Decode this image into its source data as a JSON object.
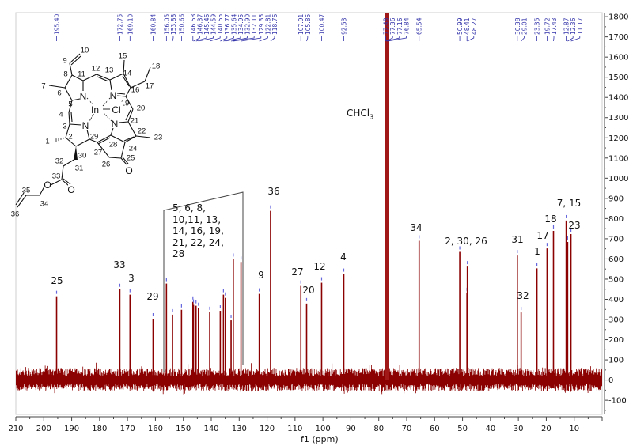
{
  "chart_data": {
    "type": "line",
    "xlabel": "f1 (ppm)",
    "ylabel": "",
    "xlim": [
      210,
      0
    ],
    "ylim": [
      -170,
      1820
    ],
    "x_ticks": [
      210,
      200,
      190,
      180,
      170,
      160,
      150,
      140,
      130,
      120,
      110,
      100,
      90,
      80,
      70,
      60,
      50,
      40,
      30,
      20,
      10
    ],
    "y_ticks": [
      1800,
      1700,
      1600,
      1500,
      1400,
      1300,
      1200,
      1100,
      1000,
      900,
      800,
      700,
      600,
      500,
      400,
      300,
      200,
      100,
      0,
      -100
    ],
    "grid": false,
    "series_color": "#8b0000",
    "peak_label_color": "#3333aa",
    "peaks": [
      {
        "ppm": 195.4,
        "label": "195.40",
        "intensity": 415
      },
      {
        "ppm": 172.75,
        "label": "172.75",
        "intensity": 450
      },
      {
        "ppm": 169.1,
        "label": "169.10",
        "intensity": 423
      },
      {
        "ppm": 160.84,
        "label": "160.84",
        "intensity": 304
      },
      {
        "ppm": 156.05,
        "label": "156.05",
        "intensity": 478
      },
      {
        "ppm": 153.88,
        "label": "153.88",
        "intensity": 324
      },
      {
        "ppm": 150.66,
        "label": "150.66",
        "intensity": 348
      },
      {
        "ppm": 146.58,
        "label": "146.58",
        "intensity": 387
      },
      {
        "ppm": 146.37,
        "label": "146.37",
        "intensity": 372
      },
      {
        "ppm": 145.46,
        "label": "145.46",
        "intensity": 368
      },
      {
        "ppm": 144.59,
        "label": "144.59",
        "intensity": 356
      },
      {
        "ppm": 140.55,
        "label": "140.55",
        "intensity": 336
      },
      {
        "ppm": 136.77,
        "label": "136.77",
        "intensity": 343
      },
      {
        "ppm": 135.64,
        "label": "135.64",
        "intensity": 423
      },
      {
        "ppm": 134.95,
        "label": "134.95",
        "intensity": 407
      },
      {
        "ppm": 132.9,
        "label": "132.90",
        "intensity": 296
      },
      {
        "ppm": 132.11,
        "label": "132.11",
        "intensity": 600
      },
      {
        "ppm": 129.35,
        "label": "129.35",
        "intensity": 585
      },
      {
        "ppm": 122.81,
        "label": "122.81",
        "intensity": 427
      },
      {
        "ppm": 118.76,
        "label": "118.76",
        "intensity": 838
      },
      {
        "ppm": 107.91,
        "label": "107.91",
        "intensity": 466
      },
      {
        "ppm": 105.85,
        "label": "105.85",
        "intensity": 379
      },
      {
        "ppm": 100.47,
        "label": "100.47",
        "intensity": 482
      },
      {
        "ppm": 92.53,
        "label": "92.53",
        "intensity": 525
      },
      {
        "ppm": 77.48,
        "label": "77.48",
        "intensity": 1850
      },
      {
        "ppm": 77.36,
        "label": "77.36",
        "intensity": 1850
      },
      {
        "ppm": 77.16,
        "label": "77.16",
        "intensity": 1850
      },
      {
        "ppm": 76.84,
        "label": "76.84",
        "intensity": 1850
      },
      {
        "ppm": 65.54,
        "label": "65.54",
        "intensity": 690
      },
      {
        "ppm": 50.99,
        "label": "50.99",
        "intensity": 635
      },
      {
        "ppm": 48.41,
        "label": "48.41",
        "intensity": 430
      },
      {
        "ppm": 48.27,
        "label": "48.27",
        "intensity": 562
      },
      {
        "ppm": 30.38,
        "label": "30.38",
        "intensity": 617
      },
      {
        "ppm": 29.01,
        "label": "29.01",
        "intensity": 335
      },
      {
        "ppm": 23.35,
        "label": "23.35",
        "intensity": 553
      },
      {
        "ppm": 19.72,
        "label": "19.72",
        "intensity": 652
      },
      {
        "ppm": 17.43,
        "label": "17.43",
        "intensity": 739
      },
      {
        "ppm": 12.87,
        "label": "12.87",
        "intensity": 790
      },
      {
        "ppm": 12.36,
        "label": "12.36",
        "intensity": 684
      },
      {
        "ppm": 11.17,
        "label": "11.17",
        "intensity": 723
      }
    ],
    "annotations": {
      "solvent": "CHCl3",
      "bracket_group": [
        "5, 6, 8,",
        "10,11, 13,",
        "14, 16, 19,",
        "21, 22, 24,",
        "28"
      ],
      "assignments": [
        "25",
        "33",
        "3",
        "29",
        "9",
        "36",
        "27",
        "20",
        "12",
        "4",
        "34",
        "2, 30, 26",
        "31",
        "32",
        "1",
        "17",
        "18",
        "7, 15",
        "23"
      ]
    }
  },
  "structure": {
    "atom_labels": [
      "10",
      "9",
      "15",
      "12",
      "13",
      "14",
      "18",
      "11",
      "8",
      "17",
      "7",
      "6",
      "16",
      "N",
      "N",
      "19",
      "5",
      "In",
      "Cl",
      "20",
      "4",
      "3",
      "N",
      "N",
      "21",
      "22",
      "23",
      "1",
      "2",
      "29",
      "28",
      "27",
      "24",
      "30",
      "25",
      "26",
      "32",
      "31",
      "O",
      "33",
      "O",
      "O",
      "35",
      "34",
      "36"
    ]
  }
}
